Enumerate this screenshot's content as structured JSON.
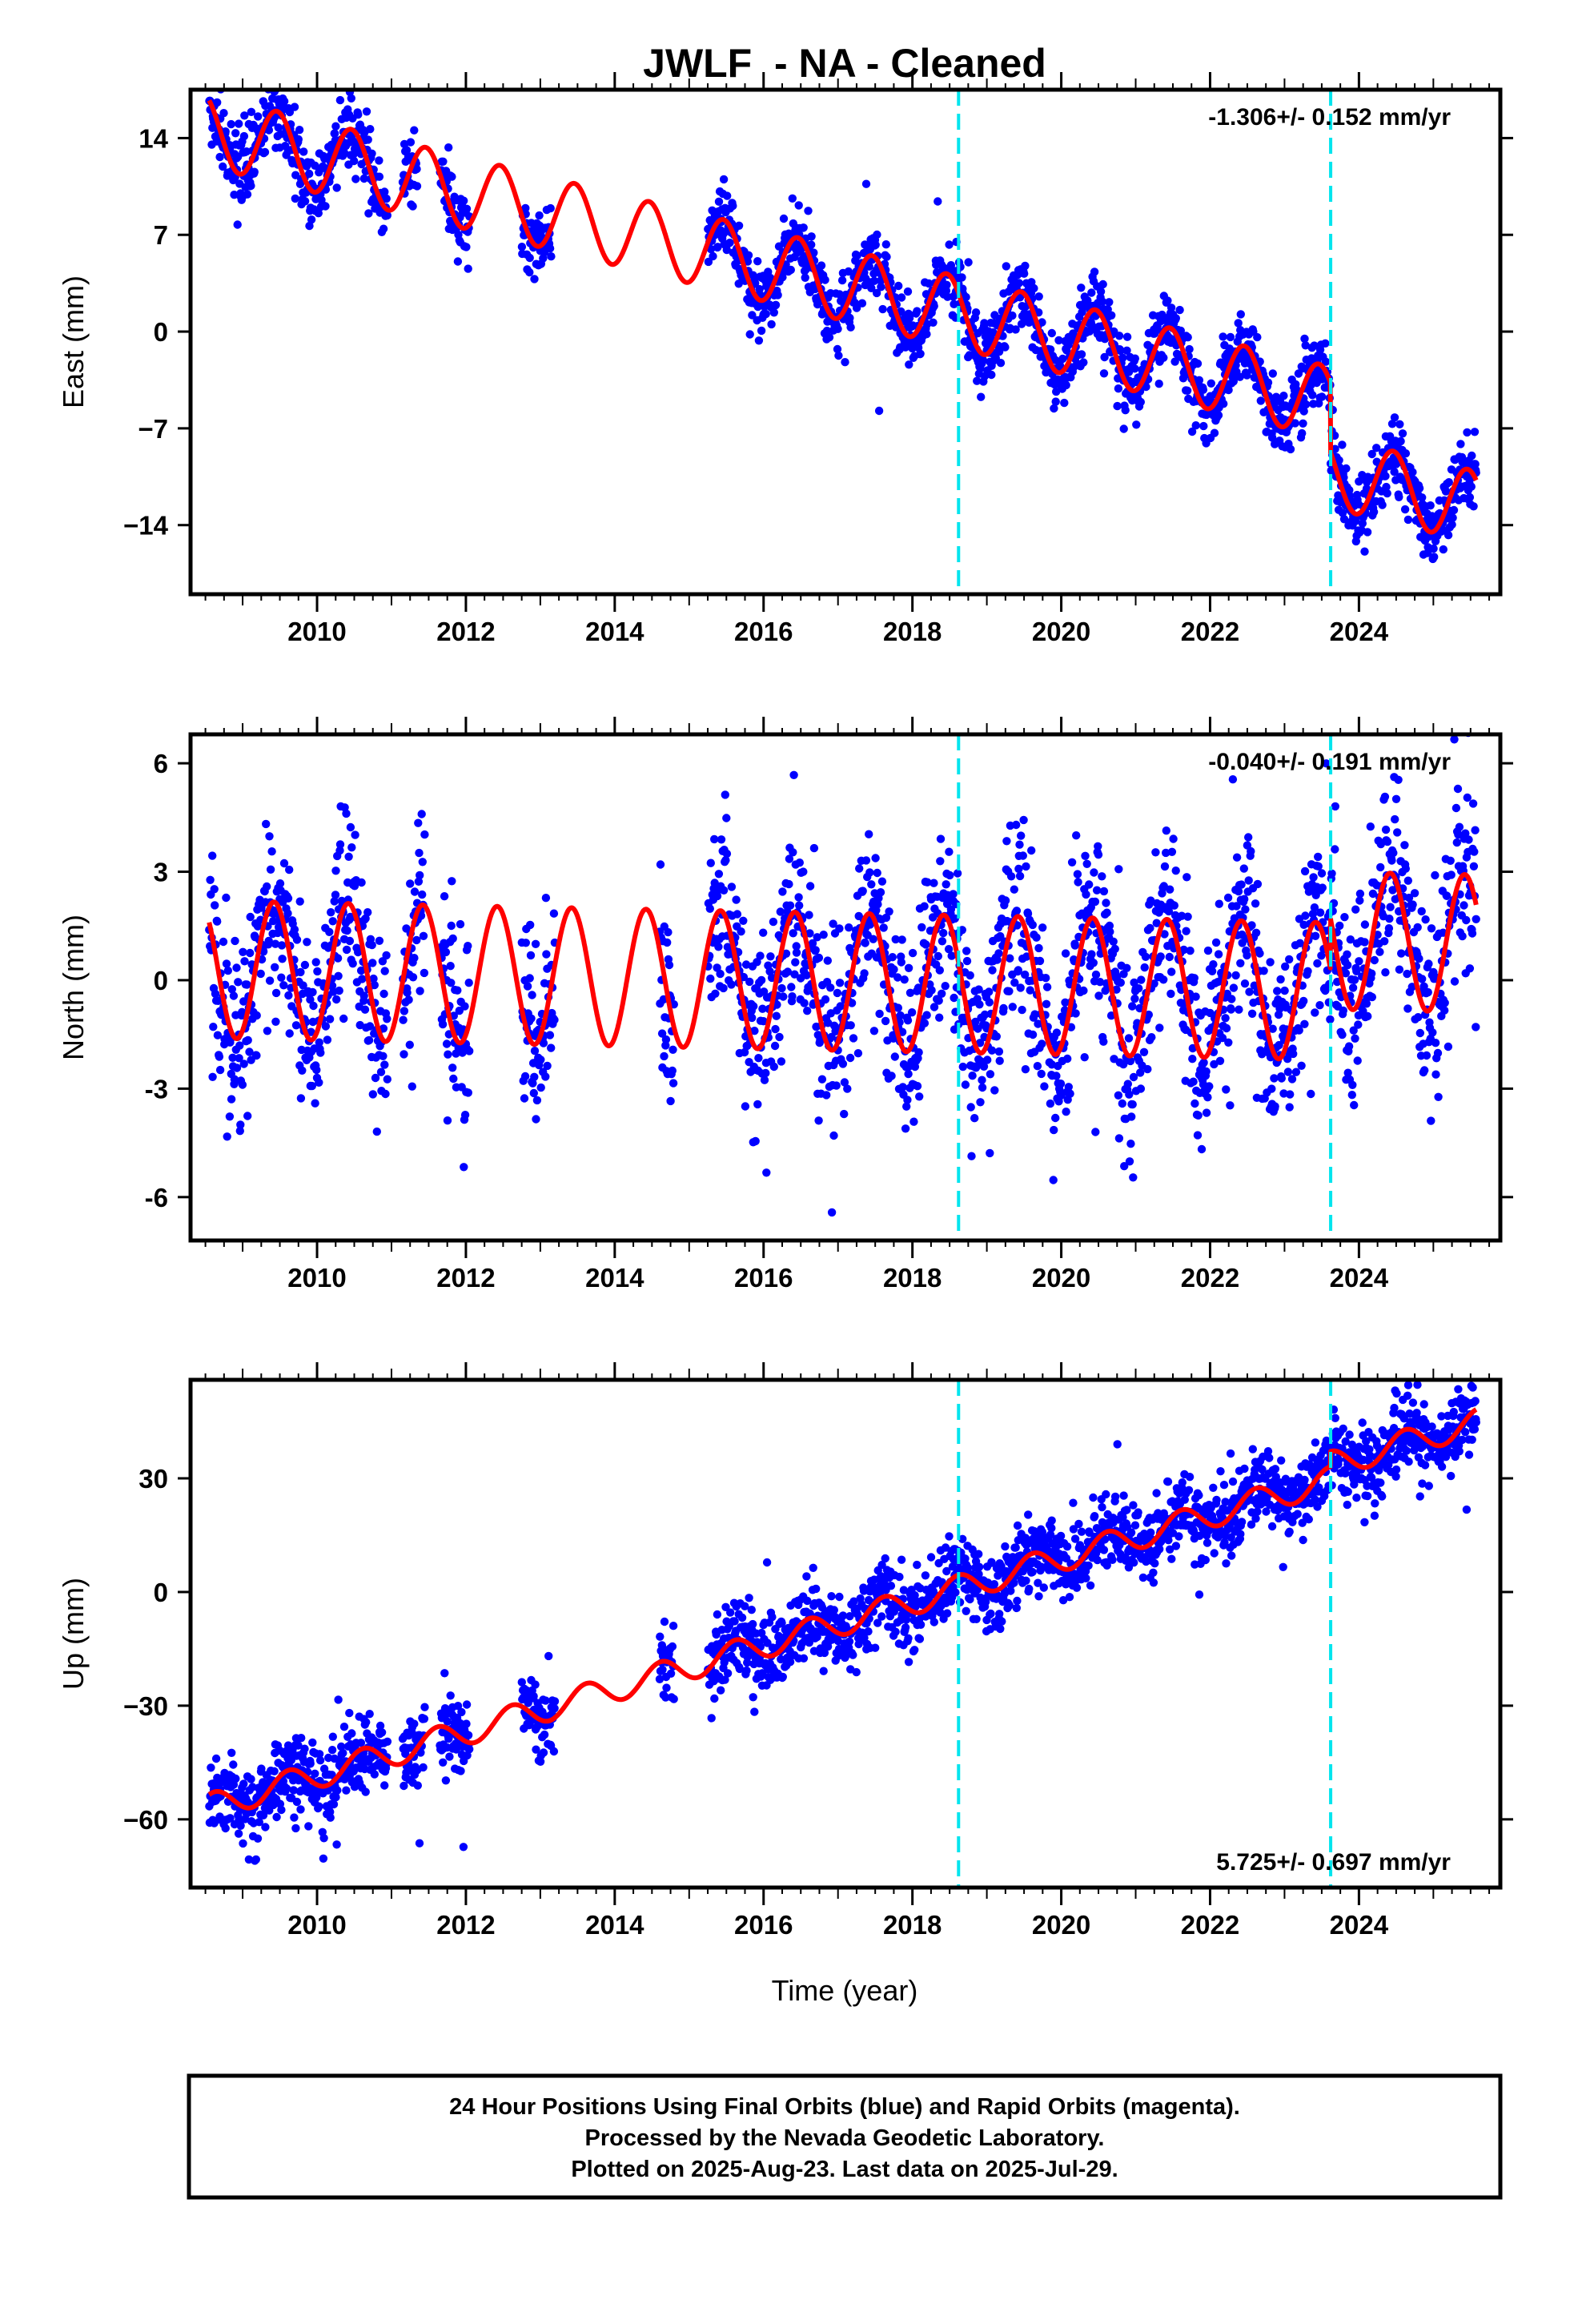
{
  "figure": {
    "title": "JWLF  - NA - Cleaned",
    "xlabel": "Time (year)"
  },
  "footer": {
    "lines": [
      "24 Hour Positions Using Final Orbits (blue) and Rapid Orbits (magenta).",
      "Processed by the Nevada Geodetic Laboratory.",
      "Plotted on 2025-Aug-23. Last data on 2025-Jul-29."
    ]
  },
  "colors": {
    "points": "#0000ff",
    "model": "#ff0000",
    "events": "#00e5ee"
  },
  "chart_data": [
    {
      "type": "scatter",
      "ylabel": "East (mm)",
      "rate": "-1.306+/- 0.152 mm/yr",
      "rate_position": "top-right",
      "xlim": [
        2008.3,
        2025.9
      ],
      "ylim": [
        -19,
        17.5
      ],
      "xticks": [
        2010,
        2012,
        2014,
        2016,
        2018,
        2020,
        2022,
        2024
      ],
      "yticks": [
        14,
        7,
        0,
        -7,
        -14
      ],
      "ytick_labels": [
        "14",
        "7",
        "0",
        "−7",
        "−14"
      ],
      "events": [
        2018.62,
        2023.62
      ],
      "data_segments": [
        [
          2008.55,
          2010.95
        ],
        [
          2011.15,
          2011.35
        ],
        [
          2011.65,
          2012.05
        ],
        [
          2012.75,
          2013.15
        ],
        [
          2015.25,
          2025.58
        ]
      ],
      "model": {
        "intercept": 4.8,
        "t0": 2016.0,
        "slope": -1.306,
        "amplitude": 2.6,
        "phase_peak": 0.46,
        "noise": 1.25,
        "offsets": [
          {
            "t": 2023.62,
            "dy": -5.0
          }
        ]
      }
    },
    {
      "type": "scatter",
      "ylabel": "North (mm)",
      "rate": "-0.040+/- 0.191 mm/yr",
      "rate_position": "top-right",
      "xlim": [
        2008.3,
        2025.9
      ],
      "ylim": [
        -7.2,
        6.8
      ],
      "xticks": [
        2010,
        2012,
        2014,
        2016,
        2018,
        2020,
        2022,
        2024
      ],
      "yticks": [
        6,
        3,
        0,
        -3,
        -6
      ],
      "ytick_labels": [
        "6",
        "3",
        "0",
        "-3",
        "-6"
      ],
      "events": [
        2018.62,
        2023.62
      ],
      "data_segments": [
        [
          2008.55,
          2010.95
        ],
        [
          2011.15,
          2011.45
        ],
        [
          2011.65,
          2012.05
        ],
        [
          2012.75,
          2013.2
        ],
        [
          2014.6,
          2014.8
        ],
        [
          2015.25,
          2025.58
        ]
      ],
      "model": {
        "intercept": 0.0,
        "t0": 2016.0,
        "slope": -0.04,
        "amplitude": 1.9,
        "phase_peak": 0.42,
        "noise": 1.3,
        "offsets": [
          {
            "t": 2023.62,
            "dy": 1.4
          }
        ]
      }
    },
    {
      "type": "scatter",
      "ylabel": "Up (mm)",
      "rate": "5.725+/- 0.697 mm/yr",
      "rate_position": "bottom-right",
      "xlim": [
        2008.3,
        2025.9
      ],
      "ylim": [
        -78,
        56
      ],
      "xticks": [
        2010,
        2012,
        2014,
        2016,
        2018,
        2020,
        2022,
        2024
      ],
      "yticks": [
        30,
        0,
        -30,
        -60
      ],
      "ytick_labels": [
        "30",
        "0",
        "−30",
        "−60"
      ],
      "events": [
        2018.62,
        2023.62
      ],
      "data_segments": [
        [
          2008.55,
          2010.95
        ],
        [
          2011.15,
          2011.45
        ],
        [
          2011.65,
          2012.05
        ],
        [
          2012.75,
          2013.2
        ],
        [
          2014.6,
          2014.8
        ],
        [
          2015.25,
          2025.58
        ]
      ],
      "model": {
        "intercept": -14.0,
        "t0": 2016.0,
        "slope": 5.725,
        "amplitude": 3.5,
        "phase_peak": 0.62,
        "noise": 5.0,
        "offsets": [
          {
            "t": 2023.62,
            "dy": 4.0
          }
        ]
      }
    }
  ]
}
